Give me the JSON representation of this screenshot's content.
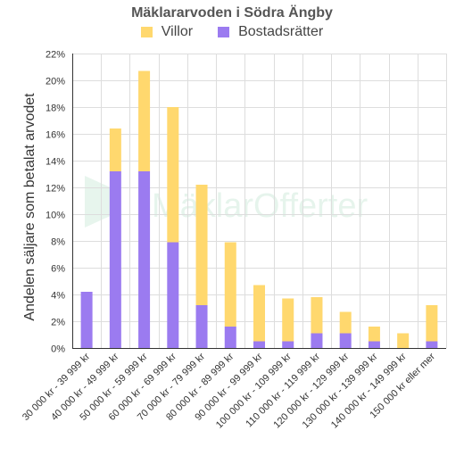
{
  "chart_data": {
    "type": "bar",
    "stacked": true,
    "title": "Mäklararvoden i Södra Ängby",
    "ylabel": "Andelen säljare som betalat arvodet",
    "xlabel": "",
    "watermark": "MäklarOfferter",
    "ylim": [
      0,
      22
    ],
    "y_tick_step": 2,
    "y_tick_suffix": "%",
    "grid": true,
    "legend_position": "top",
    "categories": [
      "30 000 kr - 39 999 kr",
      "40 000 kr - 49 999 kr",
      "50 000 kr - 59 999 kr",
      "60 000 kr - 69 999 kr",
      "70 000 kr - 79 999 kr",
      "80 000 kr - 89 999 kr",
      "90 000 kr - 99 999 kr",
      "100 000 kr - 109 999 kr",
      "110 000 kr - 119 999 kr",
      "120 000 kr - 129 999 kr",
      "130 000 kr - 139 999 kr",
      "140 000 kr - 149 999 kr",
      "150 000 kr eller mer"
    ],
    "series": [
      {
        "name": "Bostadsrätter",
        "color": "#9b7bf0",
        "values": [
          4.2,
          13.2,
          13.2,
          7.9,
          3.2,
          1.6,
          0.5,
          0.5,
          1.1,
          1.1,
          0.5,
          0.0,
          0.5
        ]
      },
      {
        "name": "Villor",
        "color": "#ffd86e",
        "values": [
          0.0,
          3.2,
          7.5,
          10.1,
          9.0,
          6.3,
          4.2,
          3.2,
          2.7,
          1.6,
          1.1,
          1.1,
          2.7
        ]
      }
    ],
    "legend_order": [
      "Villor",
      "Bostadsrätter"
    ]
  }
}
